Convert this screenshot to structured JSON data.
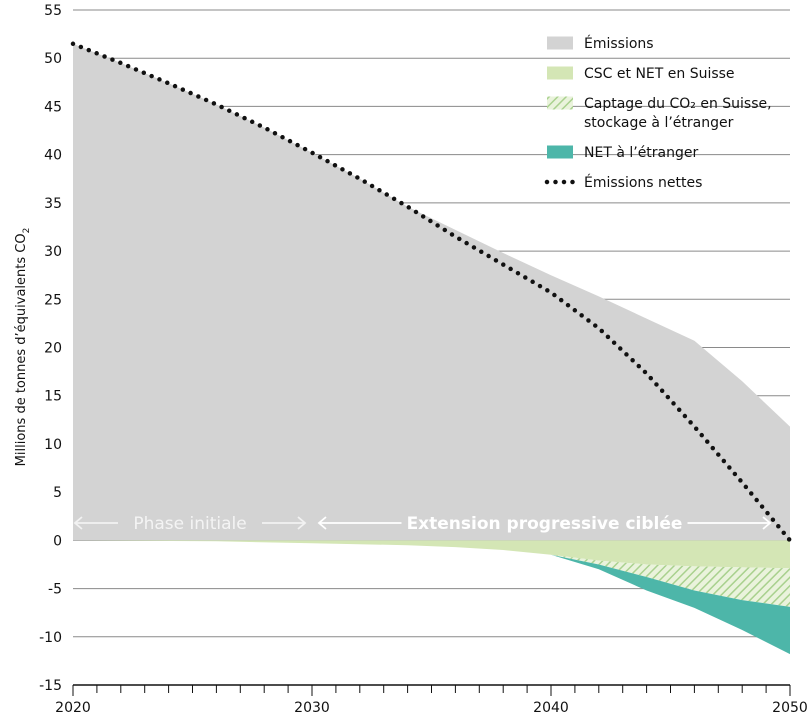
{
  "chart_data": {
    "type": "area",
    "ylabel": "Millions de tonnes d’équivalents CO",
    "ylabel_sub": "2",
    "xlim": [
      2020,
      2050
    ],
    "ylim": [
      -15,
      55
    ],
    "y_ticks": [
      55,
      50,
      45,
      40,
      35,
      30,
      25,
      20,
      15,
      10,
      5,
      0,
      -5,
      -10,
      -15
    ],
    "x_ticks": [
      2020,
      2030,
      2040,
      2050
    ],
    "grid": "horizontal",
    "legend_position": "top-right",
    "colors": {
      "emissions": "#d3d3d3",
      "csc_net_suisse": "#d4e6b5",
      "captage_hatch_bg": "#eaf3dc",
      "captage_hatch_line": "#a9d18e",
      "net_etranger": "#4db6a9",
      "net_emissions": "#111111",
      "grid": "#8a8a8a"
    },
    "series": [
      {
        "name": "Émissions",
        "x": [
          2020,
          2022,
          2024,
          2026,
          2028,
          2030,
          2032,
          2034,
          2036,
          2038,
          2040,
          2042,
          2044,
          2046,
          2048,
          2050
        ],
        "y": [
          51.5,
          49.5,
          47.4,
          45.2,
          42.8,
          40.2,
          37.5,
          34.6,
          32.2,
          29.8,
          27.5,
          25.3,
          23.0,
          20.7,
          16.5,
          11.8
        ]
      },
      {
        "name": "CSC et NET en Suisse",
        "x": [
          2020,
          2026,
          2030,
          2034,
          2036,
          2038,
          2040,
          2042,
          2044,
          2046,
          2048,
          2050
        ],
        "y": [
          0,
          -0.1,
          -0.3,
          -0.5,
          -0.7,
          -1.0,
          -1.5,
          -2.1,
          -2.5,
          -2.7,
          -2.8,
          -2.9
        ]
      },
      {
        "name": "Captage du CO₂ en Suisse, stockage à l’étranger",
        "x": [
          2040,
          2042,
          2044,
          2046,
          2048,
          2050
        ],
        "y": [
          -1.5,
          -2.5,
          -3.8,
          -5.2,
          -6.2,
          -6.9
        ]
      },
      {
        "name": "NET à l’étranger",
        "x": [
          2040,
          2042,
          2044,
          2046,
          2048,
          2050
        ],
        "y": [
          -1.5,
          -3.0,
          -5.2,
          -7.0,
          -9.3,
          -11.8
        ]
      },
      {
        "name": "Émissions nettes",
        "x": [
          2020,
          2022,
          2024,
          2026,
          2028,
          2030,
          2032,
          2034,
          2036,
          2038,
          2040,
          2042,
          2044,
          2046,
          2048,
          2050
        ],
        "y": [
          51.5,
          49.5,
          47.4,
          45.2,
          42.8,
          40.2,
          37.5,
          34.6,
          31.5,
          28.6,
          25.7,
          22.0,
          17.3,
          11.8,
          6.0,
          0
        ]
      }
    ],
    "legend": [
      {
        "label_lines": [
          "Émissions"
        ],
        "swatch": "emissions"
      },
      {
        "label_lines": [
          "CSC et NET en Suisse"
        ],
        "swatch": "csc"
      },
      {
        "label_lines": [
          "Captage du CO₂ en Suisse,",
          "stockage à l’étranger"
        ],
        "swatch": "hatch"
      },
      {
        "label_lines": [
          "NET à l’étranger"
        ],
        "swatch": "net"
      },
      {
        "label_lines": [
          "Émissions nettes"
        ],
        "swatch": "dotted"
      }
    ],
    "annotations": [
      {
        "text": "Phase initiale",
        "x_start": 2020,
        "x_end": 2030,
        "y": 1.8,
        "style": "light"
      },
      {
        "text": "Extension progressive ciblée",
        "x_start": 2030,
        "x_end": 2050,
        "y": 1.8,
        "style": "bold"
      }
    ]
  }
}
